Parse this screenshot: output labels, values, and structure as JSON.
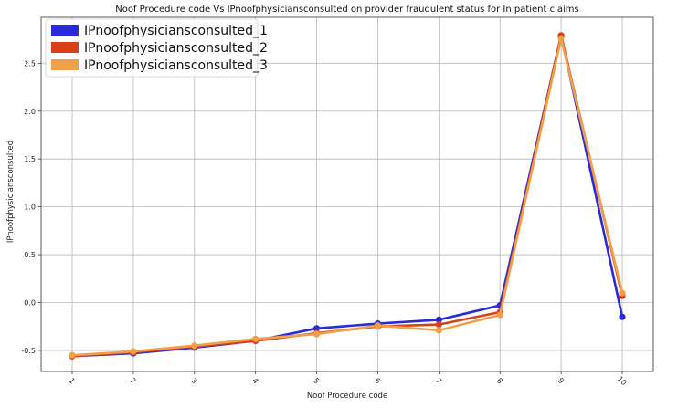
{
  "chart_data": {
    "type": "line",
    "title": "Noof Procedure code Vs IPnoofphysiciansconsulted on provider fraudulent status for In patient claims",
    "xlabel": "Noof Procedure code",
    "ylabel": "IPnoofphysiciansconsulted",
    "categories": [
      "1",
      "2",
      "3",
      "4",
      "5",
      "6",
      "7",
      "8",
      "9",
      "10"
    ],
    "ylim": [
      -0.72,
      2.98
    ],
    "yticks": [
      "-0.5",
      "0.0",
      "0.5",
      "1.0",
      "1.5",
      "2.0",
      "2.5"
    ],
    "ytick_values": [
      -0.5,
      0.0,
      0.5,
      1.0,
      1.5,
      2.0,
      2.5
    ],
    "grid": true,
    "legend_position": "top-left",
    "series": [
      {
        "name": "IPnoofphysiciansconsulted_1",
        "color": "#2a2ad8",
        "values": [
          -0.56,
          -0.53,
          -0.47,
          -0.4,
          -0.27,
          -0.22,
          -0.18,
          -0.03,
          2.79,
          -0.15
        ]
      },
      {
        "name": "IPnoofphysiciansconsulted_2",
        "color": "#d9401a",
        "values": [
          -0.56,
          -0.52,
          -0.46,
          -0.4,
          -0.32,
          -0.25,
          -0.23,
          -0.1,
          2.79,
          0.07
        ]
      },
      {
        "name": "IPnoofphysiciansconsulted_3",
        "color": "#f0a048",
        "values": [
          -0.55,
          -0.51,
          -0.45,
          -0.38,
          -0.33,
          -0.24,
          -0.29,
          -0.13,
          2.76,
          0.1
        ]
      }
    ]
  }
}
